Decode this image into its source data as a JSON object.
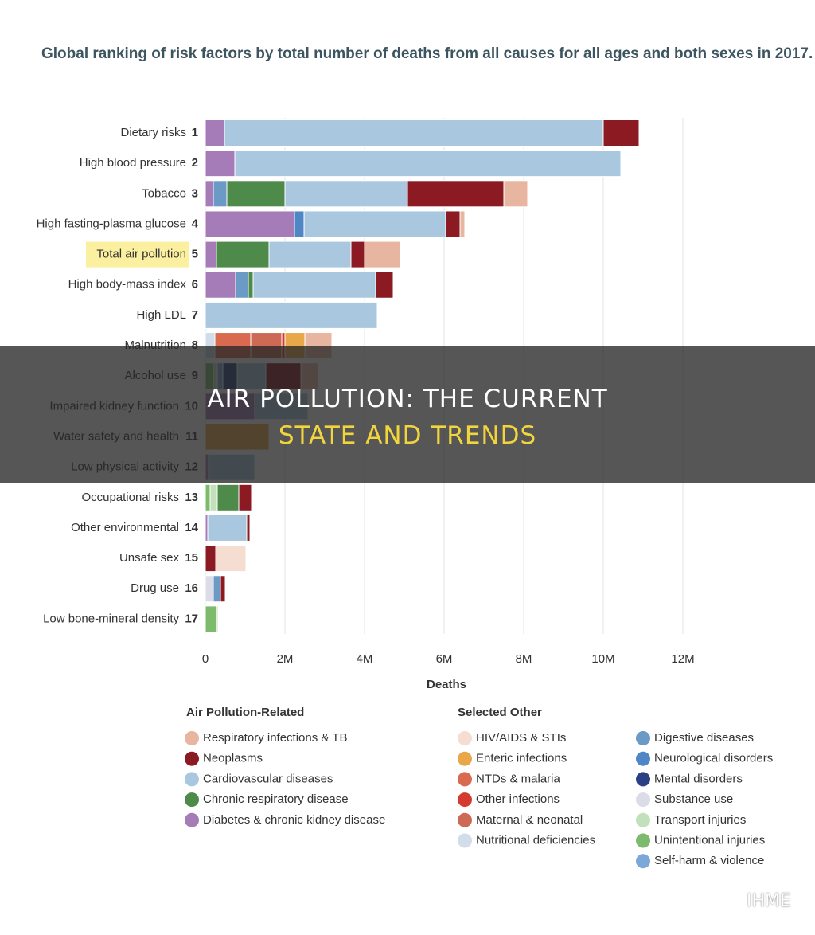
{
  "chart_data": {
    "type": "stacked-bar-horizontal",
    "title": "Global ranking of risk factors by total number of deaths from all causes for all ages and both sexes in 2017.",
    "xlabel": "Deaths",
    "categories": [
      "Dietary risks",
      "High blood pressure",
      "Tobacco",
      "High fasting-plasma glucose",
      "Total air pollution",
      "High body-mass index",
      "High LDL",
      "Malnutrition",
      "Alcohol use",
      "Impaired kidney function",
      "Water safety and health",
      "Low physical activity",
      "Occupational risks",
      "Other environmental",
      "Unsafe sex",
      "Drug use",
      "Low bone-mineral density"
    ],
    "ranks": [
      1,
      2,
      3,
      4,
      5,
      6,
      7,
      8,
      9,
      10,
      11,
      12,
      13,
      14,
      15,
      16,
      17
    ],
    "xlim": [
      0,
      12000000
    ],
    "xticks": [
      0,
      {
        "value": 2000000,
        "label": "2M"
      },
      {
        "value": 4000000,
        "label": "4M"
      },
      {
        "value": 6000000,
        "label": "6M"
      },
      {
        "value": 8000000,
        "label": "8M"
      },
      {
        "value": 10000000,
        "label": "10M"
      },
      {
        "value": 12000000,
        "label": "12M"
      }
    ],
    "grid": true,
    "legend_groups": [
      "Air Pollution-Related",
      "Selected Other"
    ],
    "series": [
      {
        "name": "Respiratory infections & TB",
        "color": "#e8b5a0",
        "values": [
          null,
          null,
          600000,
          120000,
          900000,
          null,
          null,
          680000,
          440000,
          null,
          null,
          null,
          null,
          null,
          null,
          null,
          null
        ]
      },
      {
        "name": "Neoplasms",
        "color": "#8b1a22",
        "values": [
          900000,
          null,
          2420000,
          360000,
          340000,
          440000,
          null,
          null,
          880000,
          null,
          null,
          null,
          320000,
          80000,
          260000,
          120000,
          null
        ]
      },
      {
        "name": "Cardiovascular diseases",
        "color": "#a9c8e0",
        "values": [
          9520000,
          9700000,
          3080000,
          3560000,
          2060000,
          3080000,
          4320000,
          null,
          720000,
          1340000,
          null,
          1160000,
          null,
          980000,
          null,
          null,
          null
        ]
      },
      {
        "name": "Chronic respiratory disease",
        "color": "#4e8a4a",
        "values": [
          null,
          null,
          1460000,
          null,
          1320000,
          120000,
          null,
          null,
          null,
          null,
          null,
          null,
          540000,
          null,
          null,
          null,
          null
        ]
      },
      {
        "name": "Diabetes & chronic kidney disease",
        "color": "#a57bb8",
        "values": [
          480000,
          740000,
          200000,
          2240000,
          280000,
          760000,
          null,
          null,
          null,
          1240000,
          null,
          80000,
          null,
          60000,
          null,
          null,
          null
        ]
      },
      {
        "name": "HIV/AIDS & STIs",
        "color": "#f5ddd2",
        "values": [
          null,
          null,
          null,
          null,
          null,
          null,
          null,
          null,
          null,
          null,
          null,
          null,
          null,
          null,
          760000,
          null,
          null
        ]
      },
      {
        "name": "Enteric infections",
        "color": "#e8a84a",
        "values": [
          null,
          null,
          null,
          null,
          null,
          null,
          null,
          500000,
          null,
          null,
          1600000,
          null,
          null,
          null,
          null,
          null,
          null
        ]
      },
      {
        "name": "NTDs & malaria",
        "color": "#d96a50",
        "values": [
          null,
          null,
          null,
          null,
          null,
          null,
          null,
          900000,
          null,
          null,
          null,
          null,
          null,
          null,
          null,
          null,
          null
        ]
      },
      {
        "name": "Other infections",
        "color": "#d43b30",
        "values": [
          null,
          null,
          null,
          null,
          null,
          null,
          null,
          80000,
          null,
          null,
          null,
          null,
          null,
          null,
          null,
          null,
          null
        ]
      },
      {
        "name": "Maternal & neonatal",
        "color": "#cd6a55",
        "values": [
          null,
          null,
          null,
          null,
          null,
          null,
          null,
          780000,
          null,
          null,
          null,
          null,
          null,
          null,
          null,
          null,
          null
        ]
      },
      {
        "name": "Nutritional deficiencies",
        "color": "#d1dde8",
        "values": [
          null,
          null,
          null,
          null,
          null,
          null,
          null,
          240000,
          null,
          null,
          null,
          null,
          null,
          null,
          null,
          null,
          null
        ]
      },
      {
        "name": "Digestive diseases",
        "color": "#6b9ac6",
        "values": [
          null,
          null,
          340000,
          null,
          null,
          320000,
          null,
          null,
          null,
          null,
          null,
          null,
          null,
          null,
          null,
          180000,
          null
        ]
      },
      {
        "name": "Neurological disorders",
        "color": "#4f86c6",
        "values": [
          null,
          null,
          null,
          240000,
          null,
          null,
          null,
          null,
          null,
          null,
          null,
          null,
          null,
          null,
          null,
          null,
          null
        ]
      },
      {
        "name": "Mental disorders",
        "color": "#2b3f84",
        "values": [
          null,
          null,
          null,
          null,
          null,
          null,
          null,
          null,
          360000,
          null,
          null,
          null,
          null,
          null,
          null,
          null,
          null
        ]
      },
      {
        "name": "Substance use",
        "color": "#dcdbe8",
        "values": [
          null,
          null,
          null,
          null,
          null,
          null,
          null,
          null,
          null,
          null,
          null,
          null,
          null,
          null,
          null,
          200000,
          null
        ]
      },
      {
        "name": "Transport injuries",
        "color": "#c2e0bb",
        "values": [
          null,
          null,
          null,
          null,
          null,
          null,
          null,
          null,
          100000,
          null,
          null,
          null,
          180000,
          null,
          null,
          null,
          40000
        ]
      },
      {
        "name": "Unintentional injuries",
        "color": "#7dba6c",
        "values": [
          null,
          null,
          null,
          null,
          null,
          null,
          null,
          null,
          200000,
          null,
          null,
          null,
          120000,
          null,
          null,
          null,
          280000
        ]
      },
      {
        "name": "Self-harm & violence",
        "color": "#7aa8d8",
        "values": [
          null,
          null,
          null,
          null,
          null,
          null,
          null,
          null,
          140000,
          null,
          null,
          null,
          null,
          null,
          null,
          null,
          null
        ]
      }
    ]
  },
  "banner": {
    "line1": "AIR POLLUTION: THE CURRENT",
    "line2": "STATE AND TRENDS"
  },
  "watermark": "IHME"
}
